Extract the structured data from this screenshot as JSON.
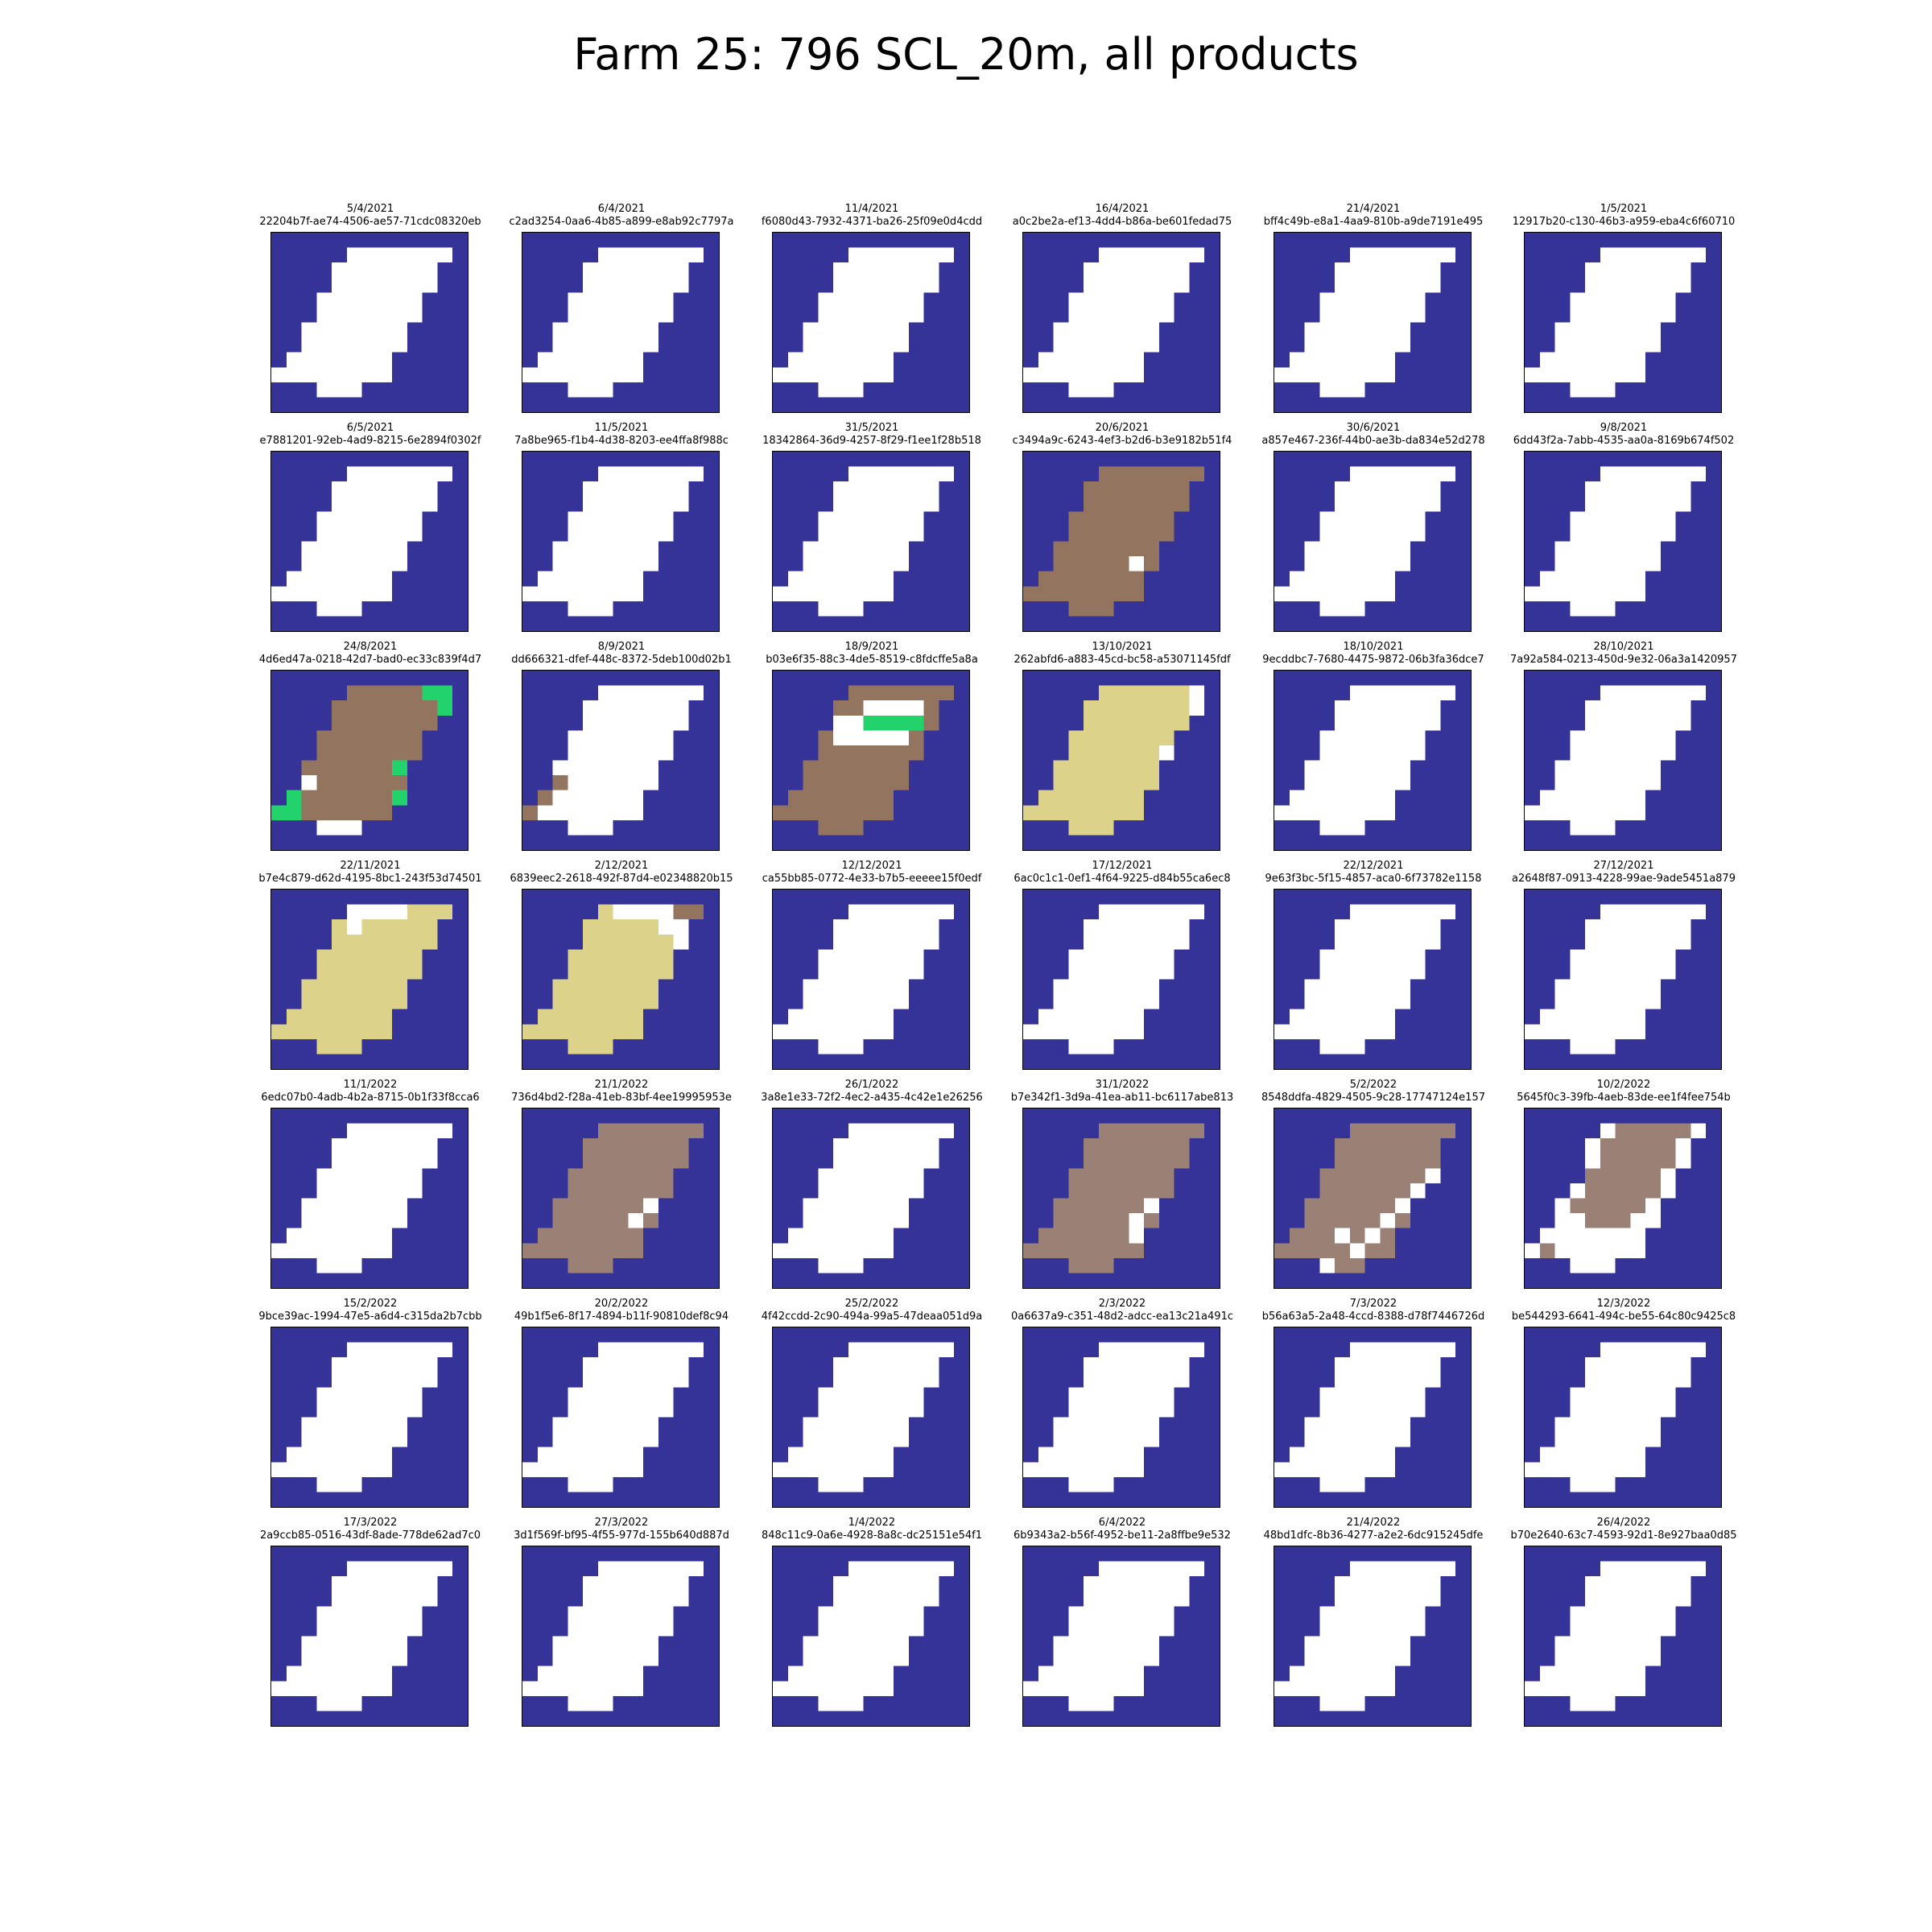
{
  "figure": {
    "title": "Farm 25: 796 SCL_20m, all products"
  },
  "scl_legend": {
    "no_data": "#ffffff",
    "background": "#363398",
    "vegetation": "#22d36b",
    "bare_soil": "#93745f",
    "dark_bare": "#9b8175",
    "clouds": "#dcd28a"
  },
  "chart_data": {
    "type": "heatmap",
    "title": "Farm 25: 796 SCL_20m, all products",
    "grid": "6 columns x 7 rows of small multiples",
    "legend": [],
    "base_mask": [
      "BBBBBBBBBBBBB",
      "BBBBBPPPPPPPB",
      "BBBBPPPPPPPBB",
      "BBBBPPPPPPPBB",
      "BBBPPPPPPPBBB",
      "BBBPPPPPPPBBB",
      "BBPPPPPPPBBBB",
      "BBPPPPPPPBBBB",
      "BPPPPPPPBBBBB",
      "PPPPPPPPBBBBB",
      "BBBPPPBBBBBBB",
      "BBBBBBBBBBBBB"
    ],
    "panels": [
      {
        "date": "5/4/2021",
        "id": "22204b7f-ae74-4506-ae57-71cdc08320eb",
        "fill": "no_data"
      },
      {
        "date": "6/4/2021",
        "id": "c2ad3254-0aa6-4b85-a899-e8ab92c7797a",
        "fill": "no_data"
      },
      {
        "date": "11/4/2021",
        "id": "f6080d43-7932-4371-ba26-25f09e0d4cdd",
        "fill": "no_data"
      },
      {
        "date": "16/4/2021",
        "id": "a0c2be2a-ef13-4dd4-b86a-be601fedad75",
        "fill": "no_data"
      },
      {
        "date": "21/4/2021",
        "id": "bff4c49b-e8a1-4aa9-810b-a9de7191e495",
        "fill": "no_data"
      },
      {
        "date": "1/5/2021",
        "id": "12917b20-c130-46b3-a959-eba4c6f60710",
        "fill": "no_data"
      },
      {
        "date": "6/5/2021",
        "id": "e7881201-92eb-4ad9-8215-6e2894f0302f",
        "fill": "no_data"
      },
      {
        "date": "11/5/2021",
        "id": "7a8be965-f1b4-4d38-8203-ee4ffa8f988c",
        "fill": "no_data"
      },
      {
        "date": "31/5/2021",
        "id": "18342864-36d9-4257-8f29-f1ee1f28b518",
        "fill": "no_data"
      },
      {
        "date": "20/6/2021",
        "id": "c3494a9c-6243-4ef3-b2d6-b3e9182b51f4",
        "fill": "bare_soil",
        "cells": [
          [
            7,
            7,
            "no_data"
          ]
        ]
      },
      {
        "date": "30/6/2021",
        "id": "a857e467-236f-44b0-ae3b-da834e52d278",
        "fill": "no_data"
      },
      {
        "date": "9/8/2021",
        "id": "6dd43f2a-7abb-4535-aa0a-8169b674f502",
        "fill": "no_data"
      },
      {
        "date": "24/8/2021",
        "id": "4d6ed47a-0218-42d7-bad0-ec33c839f4d7",
        "fill": "bare_soil",
        "cells": [
          [
            1,
            10,
            "vegetation"
          ],
          [
            1,
            11,
            "vegetation"
          ],
          [
            2,
            11,
            "vegetation"
          ],
          [
            6,
            8,
            "vegetation"
          ],
          [
            7,
            2,
            "no_data"
          ],
          [
            8,
            1,
            "vegetation"
          ],
          [
            8,
            8,
            "vegetation"
          ],
          [
            9,
            0,
            "vegetation"
          ],
          [
            9,
            1,
            "vegetation"
          ],
          [
            10,
            3,
            "no_data"
          ],
          [
            10,
            4,
            "no_data"
          ],
          [
            10,
            5,
            "no_data"
          ]
        ]
      },
      {
        "date": "8/9/2021",
        "id": "dd666321-dfef-448c-8372-5deb100d02b1",
        "fill": "no_data",
        "cells": [
          [
            7,
            2,
            "bare_soil"
          ],
          [
            8,
            1,
            "bare_soil"
          ],
          [
            9,
            0,
            "bare_soil"
          ]
        ]
      },
      {
        "date": "18/9/2021",
        "id": "b03e6f35-88c3-4de5-8519-c8fdcffe5a8a",
        "fill": "bare_soil",
        "cells": [
          [
            2,
            6,
            "no_data"
          ],
          [
            2,
            7,
            "no_data"
          ],
          [
            2,
            8,
            "no_data"
          ],
          [
            2,
            9,
            "no_data"
          ],
          [
            3,
            6,
            "vegetation"
          ],
          [
            3,
            7,
            "vegetation"
          ],
          [
            3,
            8,
            "vegetation"
          ],
          [
            3,
            9,
            "vegetation"
          ],
          [
            4,
            6,
            "no_data"
          ],
          [
            4,
            7,
            "no_data"
          ],
          [
            4,
            8,
            "no_data"
          ],
          [
            3,
            4,
            "no_data"
          ],
          [
            3,
            5,
            "no_data"
          ],
          [
            4,
            4,
            "no_data"
          ],
          [
            4,
            5,
            "no_data"
          ]
        ]
      },
      {
        "date": "13/10/2021",
        "id": "262abfd6-a883-45cd-bc58-a53071145fdf",
        "fill": "clouds",
        "cells": [
          [
            1,
            11,
            "no_data"
          ],
          [
            2,
            11,
            "no_data"
          ],
          [
            5,
            9,
            "no_data"
          ]
        ]
      },
      {
        "date": "18/10/2021",
        "id": "9ecddbc7-7680-4475-9872-06b3fa36dce7",
        "fill": "no_data"
      },
      {
        "date": "28/10/2021",
        "id": "7a92a584-0213-450d-9e32-06a3a1420957",
        "fill": "no_data"
      },
      {
        "date": "22/11/2021",
        "id": "b7e4c879-d62d-4195-8bc1-243f53d74501",
        "fill": "clouds",
        "cells": [
          [
            1,
            5,
            "no_data"
          ],
          [
            1,
            6,
            "no_data"
          ],
          [
            1,
            7,
            "no_data"
          ],
          [
            2,
            5,
            "no_data"
          ],
          [
            1,
            8,
            "no_data"
          ]
        ]
      },
      {
        "date": "2/12/2021",
        "id": "6839eec2-2618-492f-87d4-e02348820b15",
        "fill": "clouds",
        "cells": [
          [
            1,
            6,
            "no_data"
          ],
          [
            1,
            7,
            "no_data"
          ],
          [
            1,
            8,
            "no_data"
          ],
          [
            1,
            9,
            "no_data"
          ],
          [
            1,
            10,
            "bare_soil"
          ],
          [
            1,
            11,
            "bare_soil"
          ],
          [
            2,
            9,
            "no_data"
          ],
          [
            2,
            10,
            "no_data"
          ],
          [
            3,
            10,
            "no_data"
          ]
        ]
      },
      {
        "date": "12/12/2021",
        "id": "ca55bb85-0772-4e33-b7b5-eeeee15f0edf",
        "fill": "no_data"
      },
      {
        "date": "17/12/2021",
        "id": "6ac0c1c1-0ef1-4f64-9225-d84b55ca6ec8",
        "fill": "no_data"
      },
      {
        "date": "22/12/2021",
        "id": "9e63f3bc-5f15-4857-aca0-6f73782e1158",
        "fill": "no_data"
      },
      {
        "date": "27/12/2021",
        "id": "a2648f87-0913-4228-99ae-9ade5451a879",
        "fill": "no_data"
      },
      {
        "date": "11/1/2022",
        "id": "6edc07b0-4adb-4b2a-8715-0b1f33f8cca6",
        "fill": "no_data"
      },
      {
        "date": "21/1/2022",
        "id": "736d4bd2-f28a-41eb-83bf-4ee19995953e",
        "fill": "dark_bare",
        "cells": [
          [
            6,
            8,
            "no_data"
          ],
          [
            7,
            7,
            "no_data"
          ]
        ]
      },
      {
        "date": "26/1/2022",
        "id": "3a8e1e33-72f2-4ec2-a435-4c42e1e26256",
        "fill": "no_data"
      },
      {
        "date": "31/1/2022",
        "id": "b7e342f1-3d9a-41ea-ab11-bc6117abe813",
        "fill": "dark_bare",
        "cells": [
          [
            6,
            8,
            "no_data"
          ],
          [
            7,
            7,
            "no_data"
          ],
          [
            8,
            7,
            "no_data"
          ]
        ]
      },
      {
        "date": "5/2/2022",
        "id": "8548ddfa-4829-4505-9c28-17747124e157",
        "fill": "dark_bare",
        "cells": [
          [
            4,
            10,
            "no_data"
          ],
          [
            5,
            9,
            "no_data"
          ],
          [
            6,
            8,
            "no_data"
          ],
          [
            7,
            7,
            "no_data"
          ],
          [
            8,
            4,
            "no_data"
          ],
          [
            8,
            6,
            "no_data"
          ],
          [
            9,
            5,
            "no_data"
          ],
          [
            10,
            3,
            "no_data"
          ]
        ]
      },
      {
        "date": "10/2/2022",
        "id": "5645f0c3-39fb-4aeb-83de-ee1f4fee754b",
        "fill": "no_data",
        "cells": [
          [
            1,
            6,
            "dark_bare"
          ],
          [
            1,
            7,
            "dark_bare"
          ],
          [
            1,
            8,
            "dark_bare"
          ],
          [
            1,
            9,
            "dark_bare"
          ],
          [
            1,
            10,
            "dark_bare"
          ],
          [
            2,
            5,
            "dark_bare"
          ],
          [
            2,
            6,
            "dark_bare"
          ],
          [
            2,
            7,
            "dark_bare"
          ],
          [
            2,
            8,
            "dark_bare"
          ],
          [
            2,
            9,
            "dark_bare"
          ],
          [
            3,
            5,
            "dark_bare"
          ],
          [
            3,
            6,
            "dark_bare"
          ],
          [
            3,
            7,
            "dark_bare"
          ],
          [
            3,
            8,
            "dark_bare"
          ],
          [
            3,
            9,
            "dark_bare"
          ],
          [
            4,
            4,
            "dark_bare"
          ],
          [
            4,
            5,
            "dark_bare"
          ],
          [
            4,
            6,
            "dark_bare"
          ],
          [
            4,
            7,
            "dark_bare"
          ],
          [
            4,
            8,
            "dark_bare"
          ],
          [
            5,
            4,
            "dark_bare"
          ],
          [
            5,
            5,
            "dark_bare"
          ],
          [
            5,
            6,
            "dark_bare"
          ],
          [
            5,
            7,
            "dark_bare"
          ],
          [
            5,
            8,
            "dark_bare"
          ],
          [
            6,
            3,
            "dark_bare"
          ],
          [
            6,
            4,
            "dark_bare"
          ],
          [
            6,
            5,
            "dark_bare"
          ],
          [
            6,
            6,
            "dark_bare"
          ],
          [
            6,
            7,
            "dark_bare"
          ],
          [
            7,
            4,
            "dark_bare"
          ],
          [
            7,
            5,
            "dark_bare"
          ],
          [
            7,
            6,
            "dark_bare"
          ],
          [
            9,
            1,
            "dark_bare"
          ],
          [
            4,
            3,
            "background"
          ],
          [
            1,
            11,
            "no_data"
          ]
        ]
      },
      {
        "date": "15/2/2022",
        "id": "9bce39ac-1994-47e5-a6d4-c315da2b7cbb",
        "fill": "no_data"
      },
      {
        "date": "20/2/2022",
        "id": "49b1f5e6-8f17-4894-b11f-90810def8c94",
        "fill": "no_data"
      },
      {
        "date": "25/2/2022",
        "id": "4f42ccdd-2c90-494a-99a5-47deaa051d9a",
        "fill": "no_data"
      },
      {
        "date": "2/3/2022",
        "id": "0a6637a9-c351-48d2-adcc-ea13c21a491c",
        "fill": "no_data"
      },
      {
        "date": "7/3/2022",
        "id": "b56a63a5-2a48-4ccd-8388-d78f7446726d",
        "fill": "no_data"
      },
      {
        "date": "12/3/2022",
        "id": "be544293-6641-494c-be55-64c80c9425c8",
        "fill": "no_data"
      },
      {
        "date": "17/3/2022",
        "id": "2a9ccb85-0516-43df-8ade-778de62ad7c0",
        "fill": "no_data"
      },
      {
        "date": "27/3/2022",
        "id": "3d1f569f-bf95-4f55-977d-155b640d887d",
        "fill": "no_data"
      },
      {
        "date": "1/4/2022",
        "id": "848c11c9-0a6e-4928-8a8c-dc25151e54f1",
        "fill": "no_data"
      },
      {
        "date": "6/4/2022",
        "id": "6b9343a2-b56f-4952-be11-2a8ffbe9e532",
        "fill": "no_data"
      },
      {
        "date": "21/4/2022",
        "id": "48bd1dfc-8b36-4277-a2e2-6dc915245dfe",
        "fill": "no_data"
      },
      {
        "date": "26/4/2022",
        "id": "b70e2640-63c7-4593-92d1-8e927baa0d85",
        "fill": "no_data"
      }
    ]
  }
}
